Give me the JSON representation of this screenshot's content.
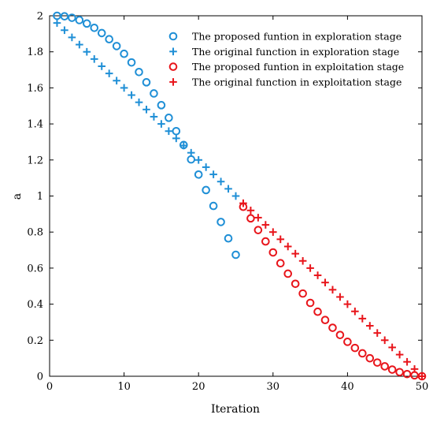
{
  "chart_data": {
    "type": "scatter",
    "xlabel": "Iteration",
    "ylabel": "a",
    "xlim": [
      0,
      50
    ],
    "ylim": [
      0,
      2
    ],
    "x_ticks": [
      "0",
      "10",
      "20",
      "30",
      "40",
      "50"
    ],
    "y_ticks": [
      "0",
      "0.2",
      "0.4",
      "0.6",
      "0.8",
      "1",
      "1.2",
      "1.4",
      "1.6",
      "1.8",
      "2"
    ],
    "grid": false,
    "legend_position": "top-right",
    "series": [
      {
        "name": "The proposed funtion in exploration stage",
        "marker": "circle",
        "color": "#1f8fd6",
        "x": [
          1,
          2,
          3,
          4,
          5,
          6,
          7,
          8,
          9,
          10,
          11,
          12,
          13,
          14,
          15,
          16,
          17,
          18,
          19,
          20,
          21,
          22,
          23,
          24,
          25
        ],
        "y": [
          2.0,
          1.997,
          1.989,
          1.976,
          1.957,
          1.933,
          1.904,
          1.87,
          1.832,
          1.789,
          1.741,
          1.688,
          1.631,
          1.569,
          1.504,
          1.434,
          1.36,
          1.283,
          1.203,
          1.119,
          1.033,
          0.945,
          0.856,
          0.765,
          0.674
        ]
      },
      {
        "name": "The original function in exploration stage",
        "marker": "plus",
        "color": "#1f8fd6",
        "x": [
          1,
          2,
          3,
          4,
          5,
          6,
          7,
          8,
          9,
          10,
          11,
          12,
          13,
          14,
          15,
          16,
          17,
          18,
          19,
          20,
          21,
          22,
          23,
          24,
          25
        ],
        "y": [
          1.96,
          1.92,
          1.88,
          1.84,
          1.8,
          1.76,
          1.72,
          1.68,
          1.64,
          1.6,
          1.56,
          1.52,
          1.48,
          1.44,
          1.4,
          1.36,
          1.32,
          1.28,
          1.24,
          1.2,
          1.16,
          1.12,
          1.08,
          1.04,
          1.0
        ]
      },
      {
        "name": "The proposed funtion in exploitation stage",
        "marker": "circle",
        "color": "#e8151b",
        "x": [
          26,
          27,
          28,
          29,
          30,
          31,
          32,
          33,
          34,
          35,
          36,
          37,
          38,
          39,
          40,
          41,
          42,
          43,
          44,
          45,
          46,
          47,
          48,
          49,
          50
        ],
        "y": [
          0.94,
          0.876,
          0.811,
          0.748,
          0.687,
          0.627,
          0.569,
          0.513,
          0.459,
          0.407,
          0.358,
          0.312,
          0.269,
          0.229,
          0.191,
          0.157,
          0.127,
          0.1,
          0.076,
          0.055,
          0.037,
          0.023,
          0.012,
          0.005,
          0.0
        ]
      },
      {
        "name": "The original function in exploitation stage",
        "marker": "plus",
        "color": "#e8151b",
        "x": [
          26,
          27,
          28,
          29,
          30,
          31,
          32,
          33,
          34,
          35,
          36,
          37,
          38,
          39,
          40,
          41,
          42,
          43,
          44,
          45,
          46,
          47,
          48,
          49,
          50
        ],
        "y": [
          0.96,
          0.92,
          0.88,
          0.84,
          0.8,
          0.76,
          0.72,
          0.68,
          0.64,
          0.6,
          0.56,
          0.52,
          0.48,
          0.44,
          0.4,
          0.36,
          0.32,
          0.28,
          0.24,
          0.2,
          0.16,
          0.12,
          0.08,
          0.04,
          0.0
        ]
      }
    ]
  }
}
